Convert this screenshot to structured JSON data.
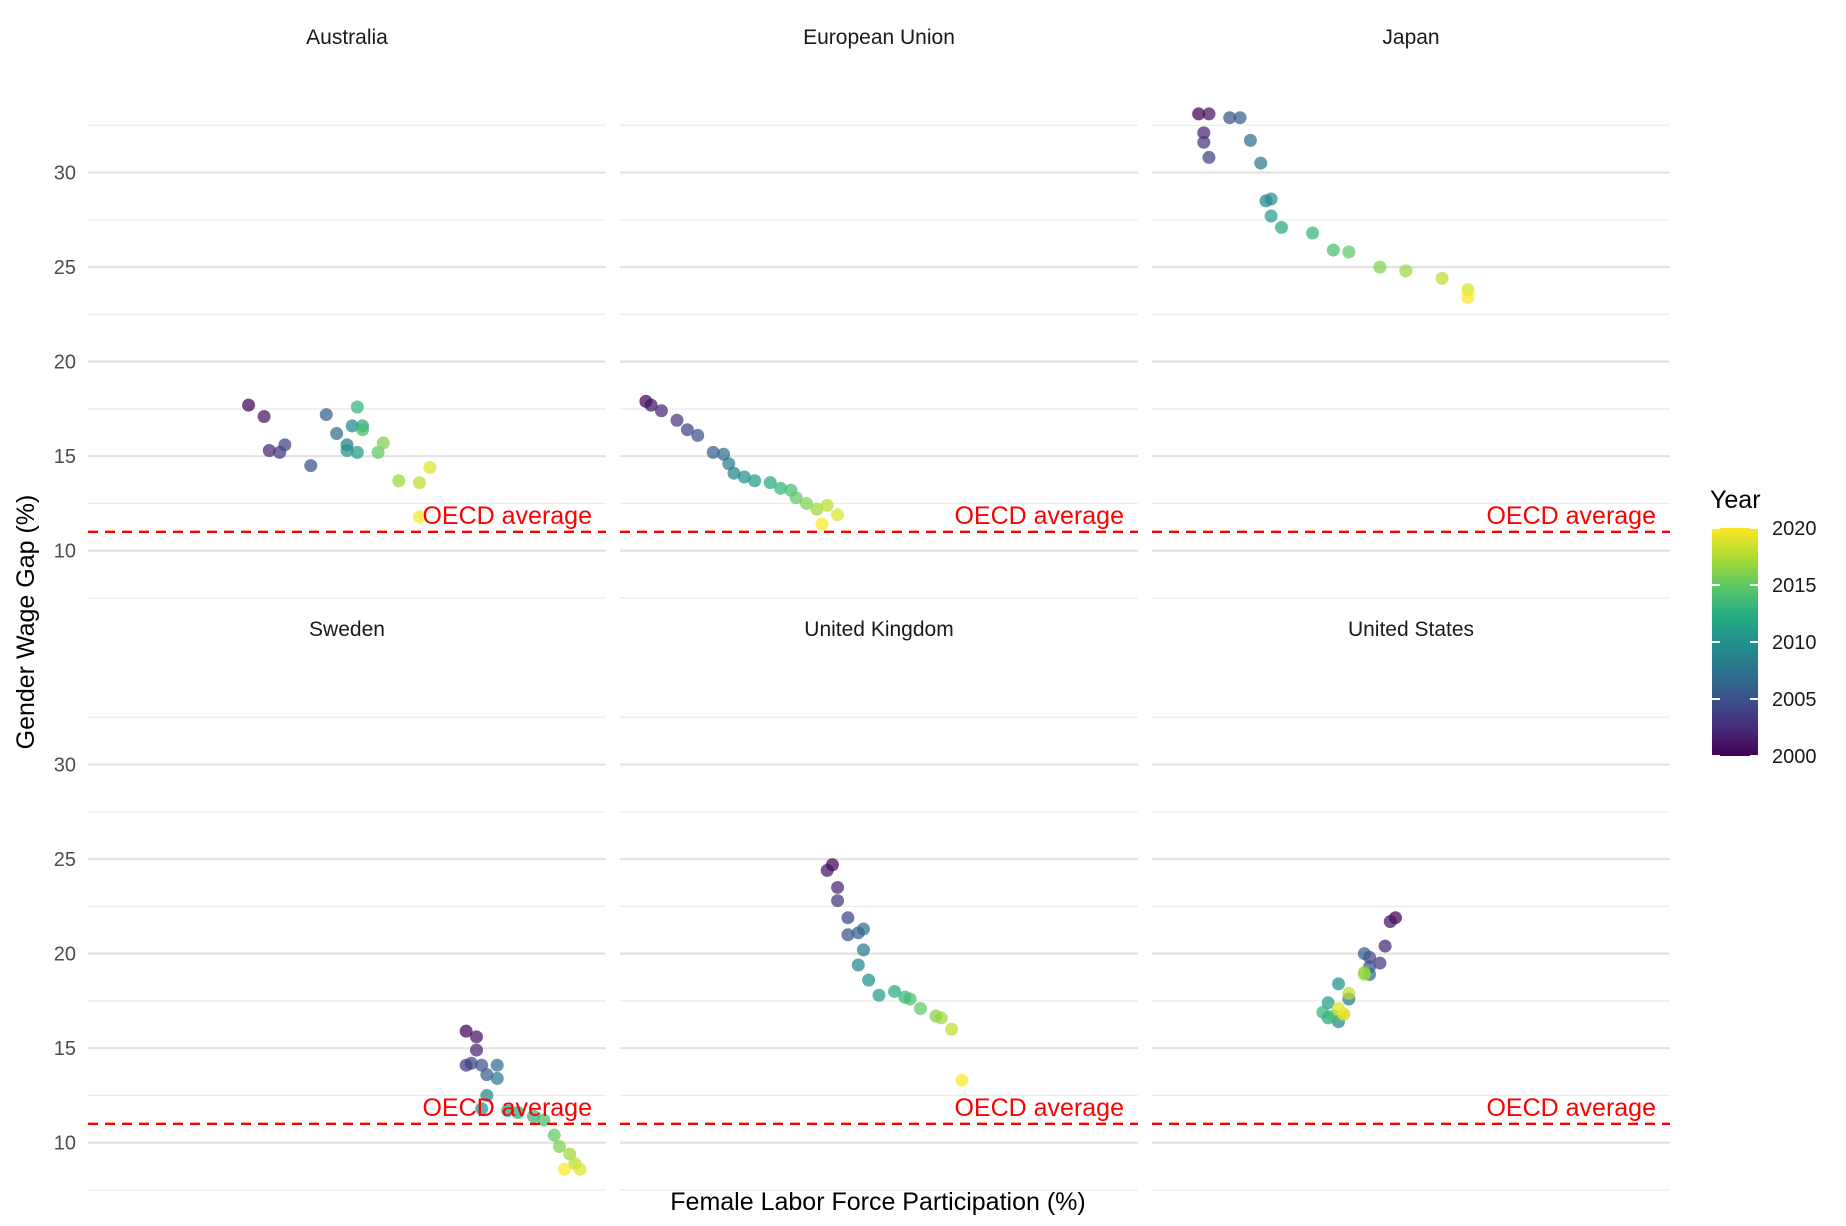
{
  "chart_data": {
    "type": "scatter",
    "facet_by": "country",
    "xlabel": "Female Labor Force Participation (%)",
    "ylabel": "Gender Wage Gap (%)",
    "ylim": [
      7.5,
      35
    ],
    "yticks": [
      10,
      15,
      20,
      25,
      30
    ],
    "x_tick_labels": "none",
    "grid": true,
    "color_by": "year",
    "legend": {
      "title": "Year",
      "position": "right",
      "colormap": "viridis",
      "range": [
        2000,
        2020
      ],
      "ticks": [
        2000,
        2005,
        2010,
        2015,
        2020
      ]
    },
    "reference_line": {
      "y": 11,
      "label": "OECD average",
      "color": "#ff0000",
      "style": "dashed"
    },
    "facets": [
      {
        "name": "Australia",
        "points": [
          {
            "x": 0.31,
            "y": 17.7,
            "year": 2000
          },
          {
            "x": 0.34,
            "y": 17.1,
            "year": 2001
          },
          {
            "x": 0.35,
            "y": 15.3,
            "year": 2002
          },
          {
            "x": 0.37,
            "y": 15.2,
            "year": 2003
          },
          {
            "x": 0.38,
            "y": 15.6,
            "year": 2004
          },
          {
            "x": 0.43,
            "y": 14.5,
            "year": 2005
          },
          {
            "x": 0.46,
            "y": 17.2,
            "year": 2006
          },
          {
            "x": 0.48,
            "y": 16.2,
            "year": 2007
          },
          {
            "x": 0.5,
            "y": 15.6,
            "year": 2008
          },
          {
            "x": 0.51,
            "y": 16.6,
            "year": 2009
          },
          {
            "x": 0.5,
            "y": 15.3,
            "year": 2010
          },
          {
            "x": 0.52,
            "y": 15.2,
            "year": 2011
          },
          {
            "x": 0.53,
            "y": 16.6,
            "year": 2012
          },
          {
            "x": 0.52,
            "y": 17.6,
            "year": 2013
          },
          {
            "x": 0.53,
            "y": 16.4,
            "year": 2014
          },
          {
            "x": 0.56,
            "y": 15.2,
            "year": 2015
          },
          {
            "x": 0.57,
            "y": 15.7,
            "year": 2016
          },
          {
            "x": 0.6,
            "y": 13.7,
            "year": 2017
          },
          {
            "x": 0.64,
            "y": 13.6,
            "year": 2018
          },
          {
            "x": 0.66,
            "y": 14.4,
            "year": 2019
          },
          {
            "x": 0.64,
            "y": 11.8,
            "year": 2020
          }
        ]
      },
      {
        "name": "European Union",
        "points": [
          {
            "x": 0.05,
            "y": 17.9,
            "year": 2000
          },
          {
            "x": 0.06,
            "y": 17.7,
            "year": 2001
          },
          {
            "x": 0.08,
            "y": 17.4,
            "year": 2002
          },
          {
            "x": 0.11,
            "y": 16.9,
            "year": 2003
          },
          {
            "x": 0.13,
            "y": 16.4,
            "year": 2004
          },
          {
            "x": 0.15,
            "y": 16.1,
            "year": 2005
          },
          {
            "x": 0.18,
            "y": 15.2,
            "year": 2006
          },
          {
            "x": 0.2,
            "y": 15.1,
            "year": 2007
          },
          {
            "x": 0.21,
            "y": 14.6,
            "year": 2008
          },
          {
            "x": 0.22,
            "y": 14.1,
            "year": 2009
          },
          {
            "x": 0.24,
            "y": 13.9,
            "year": 2010
          },
          {
            "x": 0.26,
            "y": 13.7,
            "year": 2011
          },
          {
            "x": 0.29,
            "y": 13.6,
            "year": 2012
          },
          {
            "x": 0.31,
            "y": 13.3,
            "year": 2013
          },
          {
            "x": 0.33,
            "y": 13.2,
            "year": 2014
          },
          {
            "x": 0.34,
            "y": 12.8,
            "year": 2015
          },
          {
            "x": 0.36,
            "y": 12.5,
            "year": 2016
          },
          {
            "x": 0.38,
            "y": 12.2,
            "year": 2017
          },
          {
            "x": 0.4,
            "y": 12.4,
            "year": 2018
          },
          {
            "x": 0.42,
            "y": 11.9,
            "year": 2019
          },
          {
            "x": 0.39,
            "y": 11.4,
            "year": 2020
          }
        ]
      },
      {
        "name": "Japan",
        "points": [
          {
            "x": 0.09,
            "y": 33.1,
            "year": 2000
          },
          {
            "x": 0.11,
            "y": 33.1,
            "year": 2001
          },
          {
            "x": 0.1,
            "y": 32.1,
            "year": 2002
          },
          {
            "x": 0.1,
            "y": 31.6,
            "year": 2003
          },
          {
            "x": 0.11,
            "y": 30.8,
            "year": 2004
          },
          {
            "x": 0.15,
            "y": 32.9,
            "year": 2005
          },
          {
            "x": 0.17,
            "y": 32.9,
            "year": 2006
          },
          {
            "x": 0.19,
            "y": 31.7,
            "year": 2007
          },
          {
            "x": 0.21,
            "y": 30.5,
            "year": 2008
          },
          {
            "x": 0.22,
            "y": 28.5,
            "year": 2009
          },
          {
            "x": 0.23,
            "y": 28.6,
            "year": 2010
          },
          {
            "x": 0.23,
            "y": 27.7,
            "year": 2011
          },
          {
            "x": 0.25,
            "y": 27.1,
            "year": 2012
          },
          {
            "x": 0.31,
            "y": 26.8,
            "year": 2013
          },
          {
            "x": 0.35,
            "y": 25.9,
            "year": 2014
          },
          {
            "x": 0.38,
            "y": 25.8,
            "year": 2015
          },
          {
            "x": 0.44,
            "y": 25.0,
            "year": 2016
          },
          {
            "x": 0.49,
            "y": 24.8,
            "year": 2017
          },
          {
            "x": 0.56,
            "y": 24.4,
            "year": 2018
          },
          {
            "x": 0.61,
            "y": 23.8,
            "year": 2019
          },
          {
            "x": 0.61,
            "y": 23.4,
            "year": 2020
          }
        ]
      },
      {
        "name": "Sweden",
        "points": [
          {
            "x": 0.73,
            "y": 15.9,
            "year": 2000
          },
          {
            "x": 0.75,
            "y": 15.6,
            "year": 2001
          },
          {
            "x": 0.75,
            "y": 14.9,
            "year": 2002
          },
          {
            "x": 0.73,
            "y": 14.1,
            "year": 2003
          },
          {
            "x": 0.74,
            "y": 14.2,
            "year": 2004
          },
          {
            "x": 0.76,
            "y": 14.1,
            "year": 2005
          },
          {
            "x": 0.77,
            "y": 13.6,
            "year": 2006
          },
          {
            "x": 0.79,
            "y": 14.1,
            "year": 2007
          },
          {
            "x": 0.79,
            "y": 13.4,
            "year": 2008
          },
          {
            "x": 0.77,
            "y": 12.5,
            "year": 2009
          },
          {
            "x": 0.76,
            "y": 11.8,
            "year": 2010
          },
          {
            "x": 0.81,
            "y": 11.7,
            "year": 2011
          },
          {
            "x": 0.83,
            "y": 11.6,
            "year": 2012
          },
          {
            "x": 0.86,
            "y": 11.4,
            "year": 2013
          },
          {
            "x": 0.88,
            "y": 11.2,
            "year": 2014
          },
          {
            "x": 0.9,
            "y": 10.4,
            "year": 2015
          },
          {
            "x": 0.91,
            "y": 9.8,
            "year": 2016
          },
          {
            "x": 0.93,
            "y": 9.4,
            "year": 2017
          },
          {
            "x": 0.94,
            "y": 8.9,
            "year": 2018
          },
          {
            "x": 0.95,
            "y": 8.6,
            "year": 2019
          },
          {
            "x": 0.92,
            "y": 8.6,
            "year": 2020
          }
        ]
      },
      {
        "name": "United Kingdom",
        "points": [
          {
            "x": 0.41,
            "y": 24.7,
            "year": 2000
          },
          {
            "x": 0.4,
            "y": 24.4,
            "year": 2001
          },
          {
            "x": 0.42,
            "y": 23.5,
            "year": 2002
          },
          {
            "x": 0.42,
            "y": 22.8,
            "year": 2003
          },
          {
            "x": 0.44,
            "y": 21.9,
            "year": 2004
          },
          {
            "x": 0.44,
            "y": 21.0,
            "year": 2005
          },
          {
            "x": 0.46,
            "y": 21.1,
            "year": 2006
          },
          {
            "x": 0.47,
            "y": 21.3,
            "year": 2007
          },
          {
            "x": 0.47,
            "y": 20.2,
            "year": 2008
          },
          {
            "x": 0.46,
            "y": 19.4,
            "year": 2009
          },
          {
            "x": 0.48,
            "y": 18.6,
            "year": 2010
          },
          {
            "x": 0.5,
            "y": 17.8,
            "year": 2011
          },
          {
            "x": 0.53,
            "y": 18.0,
            "year": 2012
          },
          {
            "x": 0.55,
            "y": 17.7,
            "year": 2013
          },
          {
            "x": 0.56,
            "y": 17.6,
            "year": 2014
          },
          {
            "x": 0.58,
            "y": 17.1,
            "year": 2015
          },
          {
            "x": 0.61,
            "y": 16.7,
            "year": 2016
          },
          {
            "x": 0.62,
            "y": 16.6,
            "year": 2017
          },
          {
            "x": 0.64,
            "y": 16.0,
            "year": 2018
          },
          {
            "x": 0.66,
            "y": 13.3,
            "year": 2020
          }
        ]
      },
      {
        "name": "United States",
        "points": [
          {
            "x": 0.47,
            "y": 21.9,
            "year": 2000
          },
          {
            "x": 0.46,
            "y": 21.7,
            "year": 2001
          },
          {
            "x": 0.45,
            "y": 20.4,
            "year": 2002
          },
          {
            "x": 0.44,
            "y": 19.5,
            "year": 2003
          },
          {
            "x": 0.42,
            "y": 19.8,
            "year": 2004
          },
          {
            "x": 0.42,
            "y": 19.3,
            "year": 2005
          },
          {
            "x": 0.41,
            "y": 20.0,
            "year": 2006
          },
          {
            "x": 0.42,
            "y": 18.9,
            "year": 2007
          },
          {
            "x": 0.38,
            "y": 17.6,
            "year": 2008
          },
          {
            "x": 0.36,
            "y": 16.4,
            "year": 2009
          },
          {
            "x": 0.36,
            "y": 18.4,
            "year": 2010
          },
          {
            "x": 0.34,
            "y": 17.4,
            "year": 2011
          },
          {
            "x": 0.34,
            "y": 16.6,
            "year": 2012
          },
          {
            "x": 0.33,
            "y": 16.9,
            "year": 2013
          },
          {
            "x": 0.35,
            "y": 16.7,
            "year": 2014
          },
          {
            "x": 0.37,
            "y": 16.8,
            "year": 2015
          },
          {
            "x": 0.41,
            "y": 19.0,
            "year": 2016
          },
          {
            "x": 0.41,
            "y": 18.9,
            "year": 2017
          },
          {
            "x": 0.38,
            "y": 17.9,
            "year": 2018
          },
          {
            "x": 0.36,
            "y": 17.1,
            "year": 2019
          },
          {
            "x": 0.37,
            "y": 16.8,
            "year": 2020
          }
        ]
      }
    ]
  }
}
